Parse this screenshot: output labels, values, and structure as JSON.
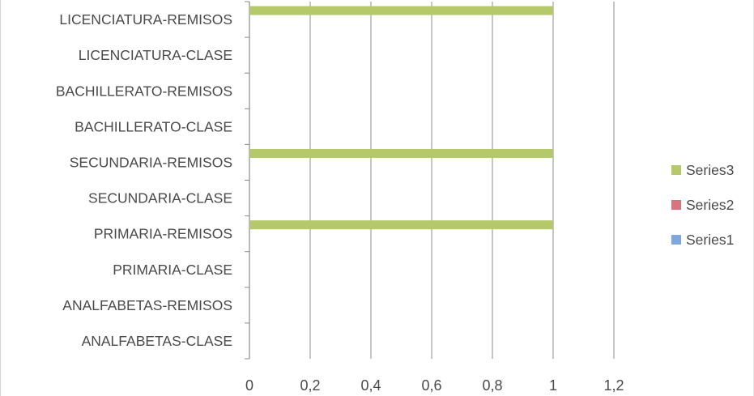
{
  "chart_data": {
    "type": "bar",
    "orientation": "horizontal",
    "categories": [
      "ANALFABETAS-CLASE",
      "ANALFABETAS-REMISOS",
      "PRIMARIA-CLASE",
      "PRIMARIA-REMISOS",
      "SECUNDARIA-CLASE",
      "SECUNDARIA-REMISOS",
      "BACHILLERATO-CLASE",
      "BACHILLERATO-REMISOS",
      "LICENCIATURA-CLASE",
      "LICENCIATURA-REMISOS"
    ],
    "series": [
      {
        "name": "Series1",
        "color": "#7ea6e0",
        "values": [
          0,
          0,
          0,
          0,
          0,
          0,
          0,
          0,
          0,
          0
        ]
      },
      {
        "name": "Series2",
        "color": "#d9737f",
        "values": [
          0,
          0,
          0,
          0,
          0,
          0,
          0,
          0,
          0,
          0
        ]
      },
      {
        "name": "Series3",
        "color": "#b5c86a",
        "values": [
          0,
          0,
          0,
          1,
          0,
          1,
          0,
          0,
          0,
          1
        ]
      }
    ],
    "x_ticks": [
      "0",
      "0,2",
      "0,4",
      "0,6",
      "0,8",
      "1",
      "1,2"
    ],
    "xlim": [
      0,
      1.2
    ],
    "grid": true,
    "legend_position": "right",
    "title": "",
    "xlabel": "",
    "ylabel": ""
  }
}
